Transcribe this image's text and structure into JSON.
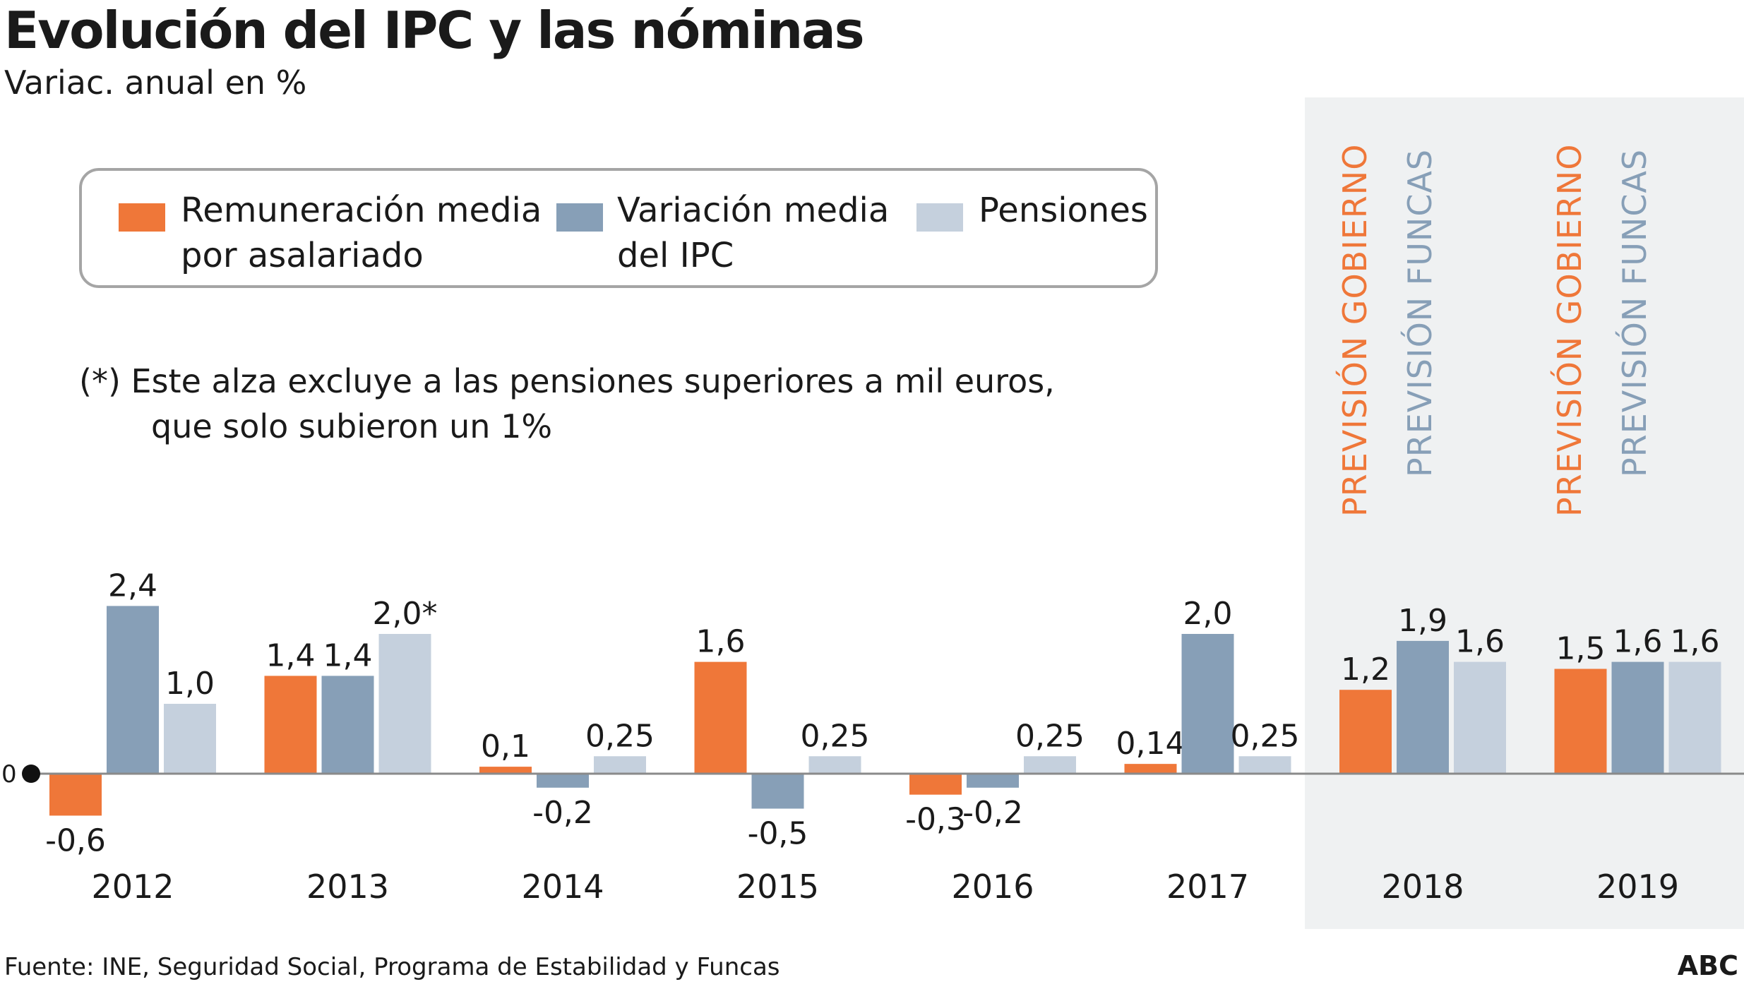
{
  "title": "Evolución del IPC y las nóminas",
  "subtitle": "Variac. anual en %",
  "legend": [
    {
      "label_line1": "Remuneración media",
      "label_line2": "por asalariado",
      "color": "#ef7739"
    },
    {
      "label_line1": "Variación media",
      "label_line2": "del IPC",
      "color": "#879fb7"
    },
    {
      "label_line1": "Pensiones",
      "label_line2": "",
      "color": "#c5d0dd"
    }
  ],
  "note_line1": "(*) Este alza excluye a las pensiones superiores a mil euros,",
  "note_line2": "que solo subieron un 1%",
  "forecast_labels": {
    "gobierno": "PREVISIÓN GOBIERNO",
    "funcas": "PREVISIÓN FUNCAS",
    "gobierno_color": "#ef7739",
    "funcas_color": "#879fb7"
  },
  "zero_label": "0",
  "source": "Fuente: INE, Seguridad Social, Programa de Estabilidad y Funcas",
  "brand": "ABC",
  "chart_data": {
    "type": "bar",
    "categories": [
      "2012",
      "2013",
      "2014",
      "2015",
      "2016",
      "2017",
      "2018",
      "2019"
    ],
    "series": [
      {
        "name": "Remuneración media por asalariado",
        "color": "#ef7739",
        "values": [
          -0.6,
          1.4,
          0.1,
          1.6,
          -0.3,
          0.14,
          1.2,
          1.5
        ],
        "labels": [
          "-0,6",
          "1,4",
          "0,1",
          "1,6",
          "-0,3",
          "0,14",
          "1,2",
          "1,5"
        ]
      },
      {
        "name": "Variación media del IPC",
        "color": "#879fb7",
        "values": [
          2.4,
          1.4,
          -0.2,
          -0.5,
          -0.2,
          2.0,
          1.9,
          1.6
        ],
        "labels": [
          "2,4",
          "1,4",
          "-0,2",
          "-0,5",
          "-0,2",
          "2,0",
          "1,9",
          "1,6"
        ]
      },
      {
        "name": "Pensiones",
        "color": "#c5d0dd",
        "values": [
          1.0,
          2.0,
          0.25,
          0.25,
          0.25,
          0.25,
          1.6,
          1.6
        ],
        "labels": [
          "1,0",
          "2,0*",
          "0,25",
          "0,25",
          "0,25",
          "0,25",
          "1,6",
          "1,6"
        ]
      }
    ],
    "forecast_categories": [
      "2018",
      "2019"
    ],
    "ylim": [
      -0.7,
      2.5
    ],
    "grid": false,
    "legend_position": "top-left"
  }
}
